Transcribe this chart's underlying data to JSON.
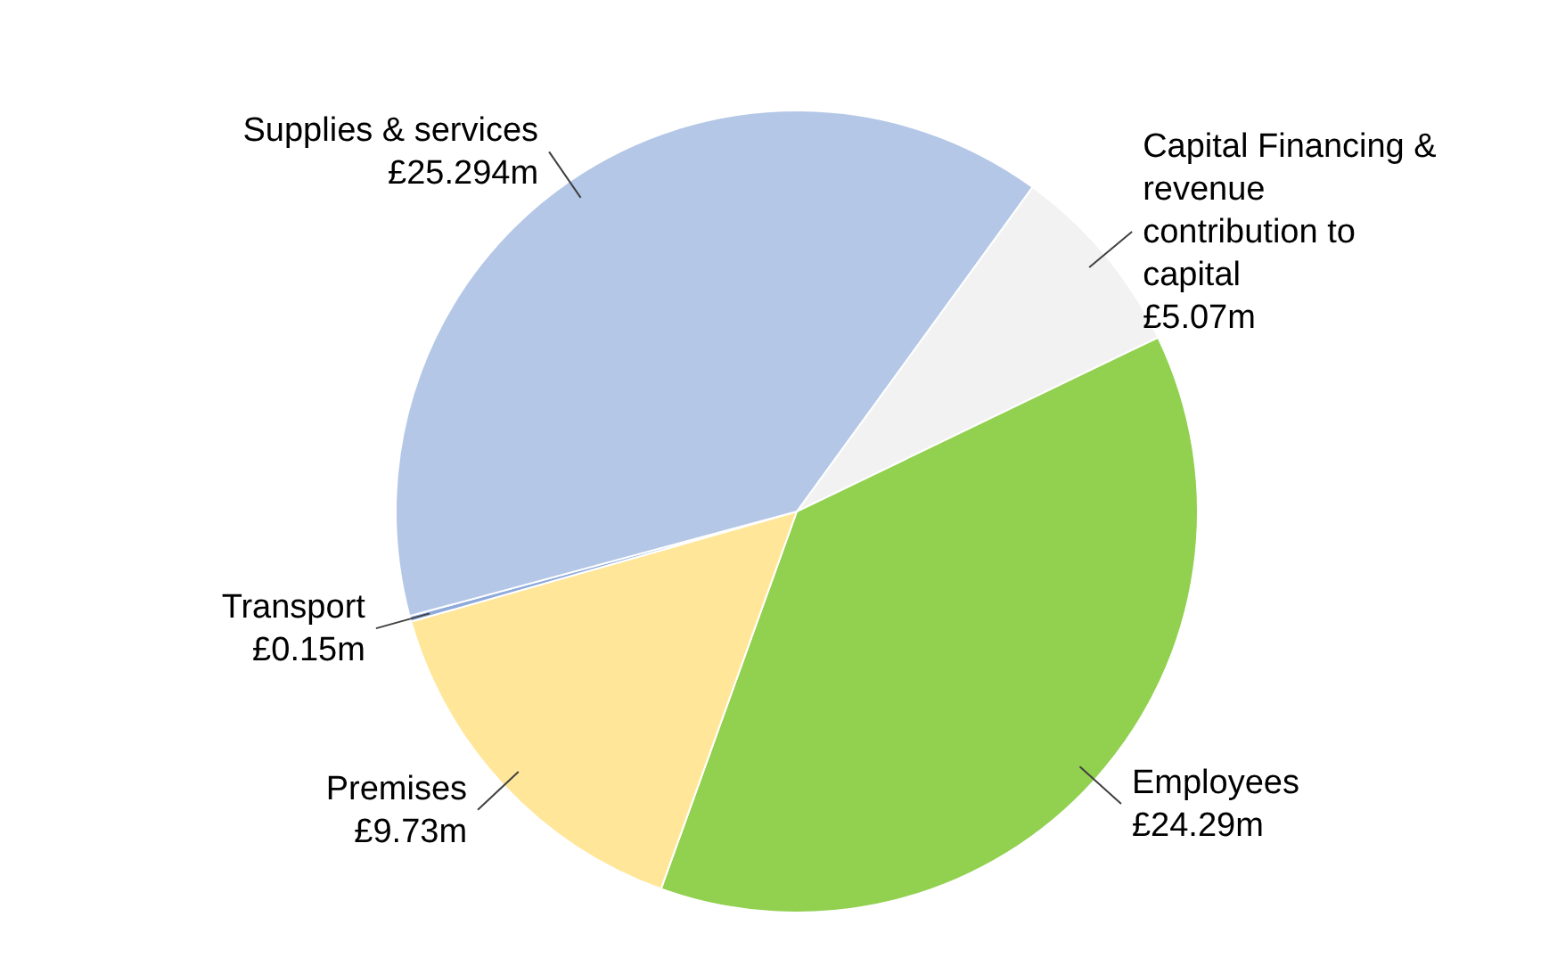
{
  "chart_data": {
    "type": "pie",
    "categories": [
      "Capital Financing & revenue contribution to capital",
      "Employees",
      "Premises",
      "Transport",
      "Supplies & services"
    ],
    "values": [
      5.07,
      24.29,
      9.73,
      0.15,
      25.294
    ],
    "colors": [
      "#f2f2f2",
      "#92d050",
      "#ffe699",
      "#8eaadb",
      "#b4c7e7"
    ],
    "value_labels": [
      "£5.07m",
      "£24.29m",
      "£9.73m",
      "£0.15m",
      "£25.294m"
    ]
  }
}
